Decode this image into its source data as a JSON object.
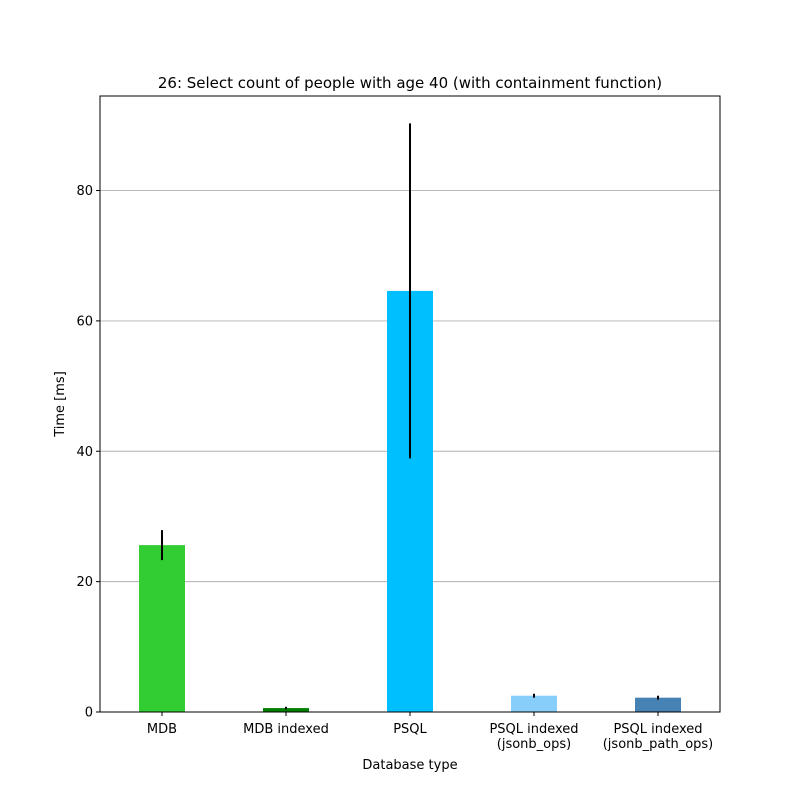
{
  "chart_data": {
    "type": "bar",
    "title": "26: Select count of people with age 40 (with containment function)",
    "xlabel": "Database type",
    "ylabel": "Time [ms]",
    "categories": [
      [
        "MDB"
      ],
      [
        "MDB indexed"
      ],
      [
        "PSQL"
      ],
      [
        "PSQL indexed",
        "(jsonb_ops)"
      ],
      [
        "PSQL indexed",
        "(jsonb_path_ops)"
      ]
    ],
    "values": [
      25.6,
      0.6,
      64.6,
      2.5,
      2.2
    ],
    "errors": [
      2.3,
      0.2,
      25.7,
      0.3,
      0.3
    ],
    "colors": [
      "#32cd32",
      "#008000",
      "#00bfff",
      "#87cefa",
      "#4682b4"
    ],
    "ylim": [
      0,
      94.5
    ],
    "yticks": [
      0,
      20,
      40,
      60,
      80
    ],
    "grid": "y-major",
    "legend": "none"
  }
}
